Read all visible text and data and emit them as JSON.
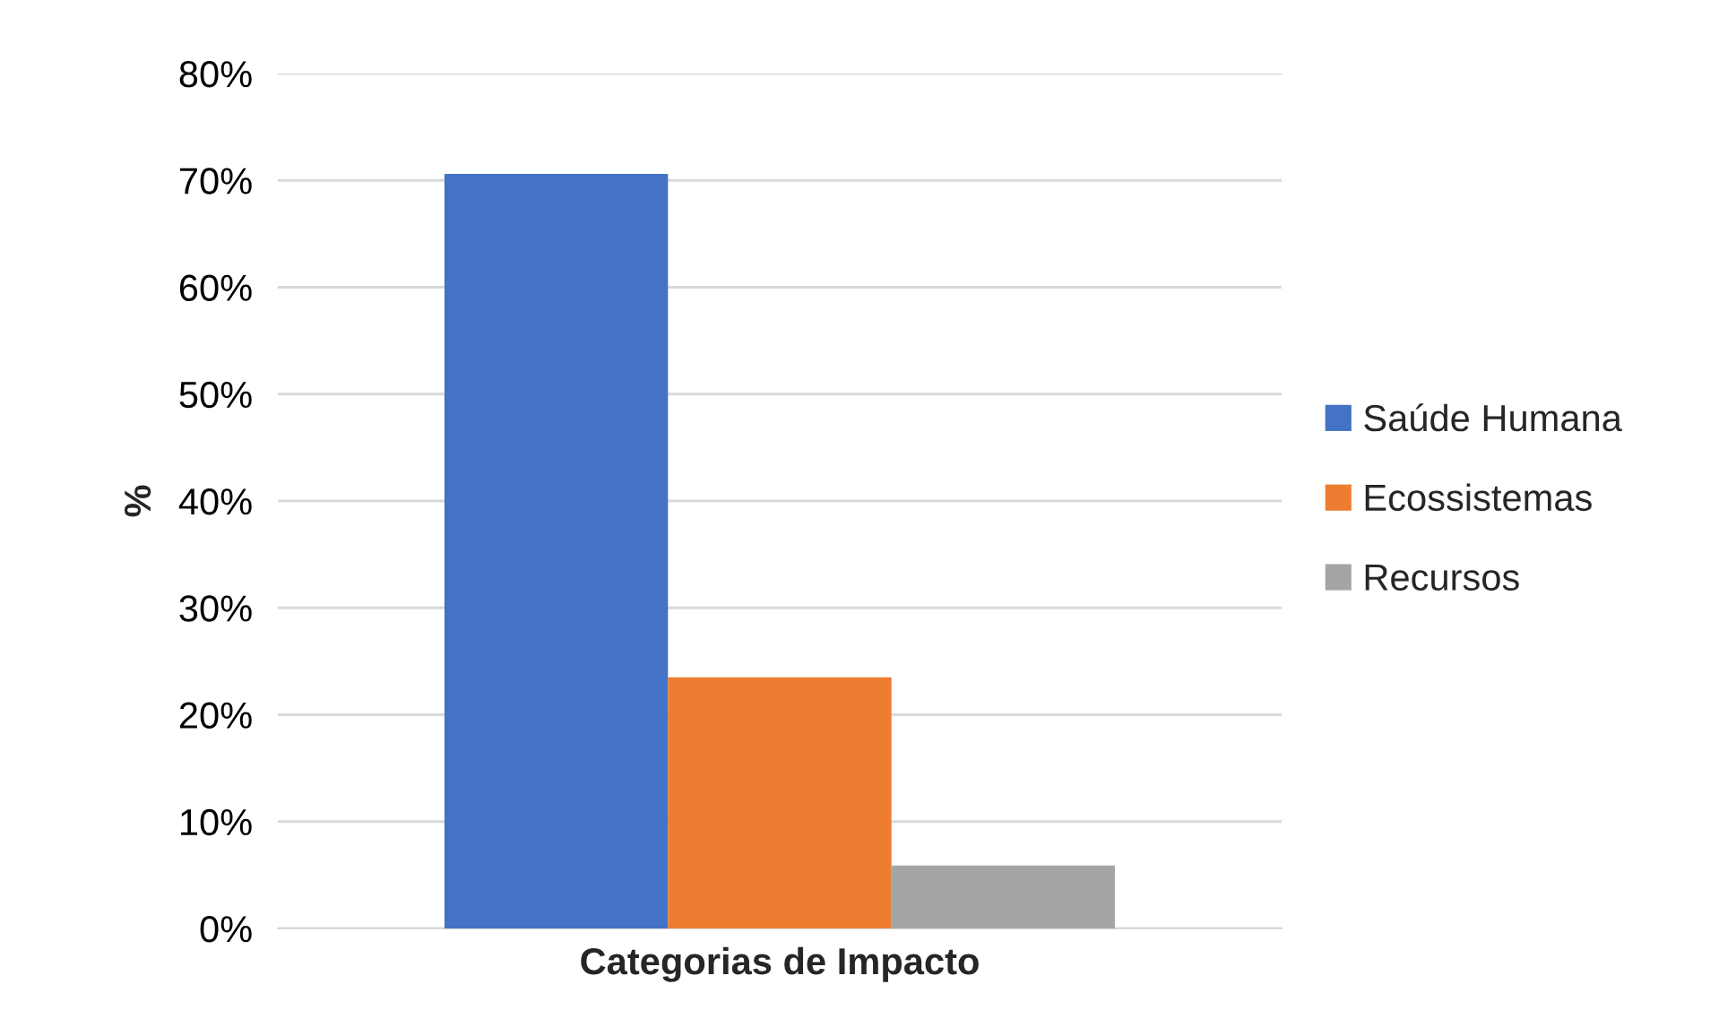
{
  "chart_data": {
    "type": "bar",
    "xlabel": "Categorias de Impacto",
    "ylabel": "%",
    "categories": [
      null
    ],
    "series": [
      {
        "name": "Saúde Humana",
        "color": "#4472c4",
        "values": [
          70.6
        ]
      },
      {
        "name": "Ecossistemas",
        "color": "#ed7d31",
        "values": [
          23.5
        ]
      },
      {
        "name": "Recursos",
        "color": "#a5a5a5",
        "values": [
          5.9
        ]
      }
    ],
    "ylim": [
      0,
      80
    ],
    "yticks": [
      {
        "value": 0,
        "label": "0%"
      },
      {
        "value": 10,
        "label": "10%"
      },
      {
        "value": 20,
        "label": "20%"
      },
      {
        "value": 30,
        "label": "30%"
      },
      {
        "value": 40,
        "label": "40%"
      },
      {
        "value": 50,
        "label": "50%"
      },
      {
        "value": 60,
        "label": "60%"
      },
      {
        "value": 70,
        "label": "70%"
      },
      {
        "value": 80,
        "label": "80%"
      }
    ],
    "grid": "y",
    "legend": "right"
  }
}
